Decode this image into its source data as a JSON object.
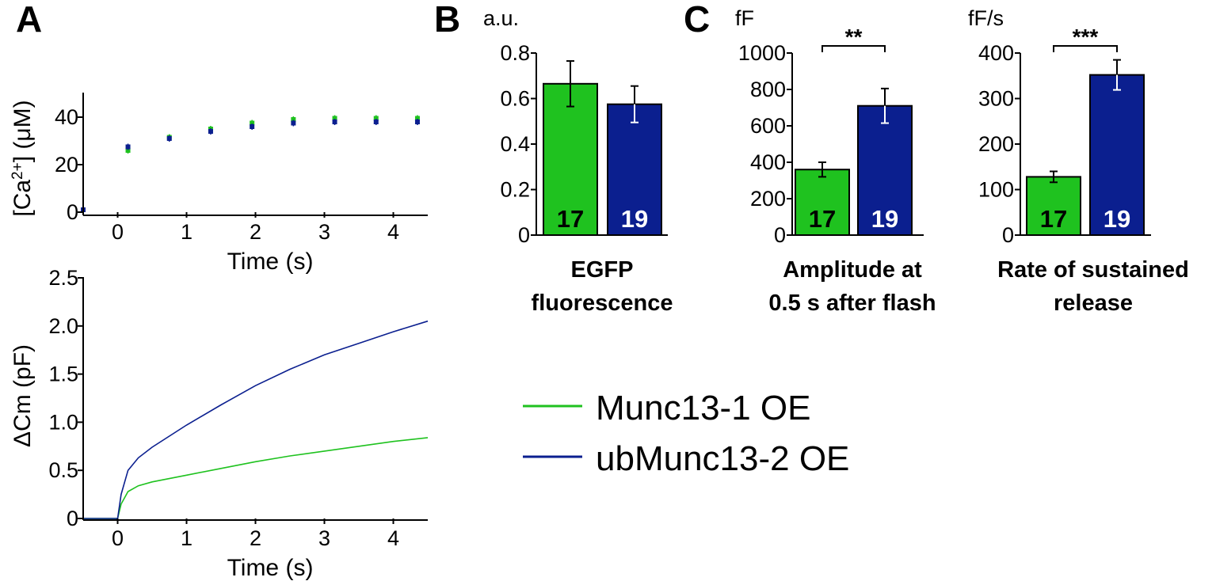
{
  "panels": {
    "a": "A",
    "b": "B",
    "c": "C"
  },
  "colors": {
    "munc13_1": "#1fc21f",
    "ubmunc13_2": "#0b1f8f",
    "axis": "#000000"
  },
  "legend": {
    "series1": "Munc13-1 OE",
    "series2": "ubMunc13-2 OE"
  },
  "chart_data": [
    {
      "id": "A-top",
      "type": "scatter",
      "xlabel": "Time (s)",
      "ylabel_prefix": "[Ca",
      "ylabel_sup": "2+",
      "ylabel_suffix": "] (μM)",
      "xlim": [
        -0.5,
        4.5
      ],
      "ylim": [
        0,
        50
      ],
      "xticks": [
        "0",
        "1",
        "2",
        "3",
        "4"
      ],
      "yticks": [
        "0",
        "20",
        "40"
      ],
      "series": [
        {
          "name": "Munc13-1 OE",
          "x": [
            -0.5,
            0.15,
            0.75,
            1.35,
            1.95,
            2.55,
            3.15,
            3.75,
            4.35
          ],
          "y": [
            1,
            26,
            31.5,
            35,
            37.5,
            39,
            39.5,
            39.5,
            39.5
          ]
        },
        {
          "name": "ubMunc13-2 OE",
          "x": [
            -0.5,
            0.15,
            0.75,
            1.35,
            1.95,
            2.55,
            3.15,
            3.75,
            4.35
          ],
          "y": [
            1,
            27.5,
            31,
            34,
            36,
            37.5,
            38,
            38,
            38
          ]
        }
      ]
    },
    {
      "id": "A-bottom",
      "type": "line",
      "xlabel": "Time (s)",
      "ylabel": "ΔCm (pF)",
      "xlim": [
        -0.5,
        4.5
      ],
      "ylim": [
        0,
        2.5
      ],
      "xticks": [
        "0",
        "1",
        "2",
        "3",
        "4"
      ],
      "yticks": [
        "0",
        "0.5",
        "1.0",
        "1.5",
        "2.0",
        "2.5"
      ],
      "series": [
        {
          "name": "Munc13-1 OE",
          "x": [
            -0.5,
            0,
            0.05,
            0.15,
            0.3,
            0.5,
            1,
            1.5,
            2,
            2.5,
            3,
            3.5,
            4,
            4.5
          ],
          "y": [
            0,
            0,
            0.15,
            0.28,
            0.34,
            0.38,
            0.45,
            0.52,
            0.59,
            0.65,
            0.7,
            0.75,
            0.8,
            0.84
          ]
        },
        {
          "name": "ubMunc13-2 OE",
          "x": [
            -0.5,
            0,
            0.05,
            0.15,
            0.3,
            0.5,
            1,
            1.5,
            2,
            2.5,
            3,
            3.5,
            4,
            4.5
          ],
          "y": [
            0,
            0,
            0.25,
            0.5,
            0.63,
            0.74,
            0.97,
            1.18,
            1.38,
            1.55,
            1.7,
            1.82,
            1.94,
            2.05
          ]
        }
      ]
    },
    {
      "id": "B",
      "type": "bar",
      "unit": "a.u.",
      "ylim": [
        0,
        0.8
      ],
      "yticks": [
        "0",
        "0.2",
        "0.4",
        "0.6",
        "0.8"
      ],
      "values": [
        0.665,
        0.575
      ],
      "errors": [
        0.1,
        0.08
      ],
      "n": [
        "17",
        "19"
      ],
      "categories_label": [
        "EGFP",
        "fluorescence"
      ],
      "significance": ""
    },
    {
      "id": "C1",
      "type": "bar",
      "unit": "fF",
      "ylim": [
        0,
        1000
      ],
      "yticks": [
        "0",
        "200",
        "400",
        "600",
        "800",
        "1000"
      ],
      "values": [
        360,
        710
      ],
      "errors": [
        40,
        95
      ],
      "n": [
        "17",
        "19"
      ],
      "categories_label": [
        "Amplitude at",
        "0.5 s after flash"
      ],
      "significance": "**"
    },
    {
      "id": "C2",
      "type": "bar",
      "unit": "fF/s",
      "ylim": [
        0,
        400
      ],
      "yticks": [
        "0",
        "100",
        "200",
        "300",
        "400"
      ],
      "values": [
        128,
        352
      ],
      "errors": [
        12,
        33
      ],
      "n": [
        "17",
        "19"
      ],
      "categories_label": [
        "Rate of sustained",
        "release"
      ],
      "significance": "***"
    }
  ]
}
